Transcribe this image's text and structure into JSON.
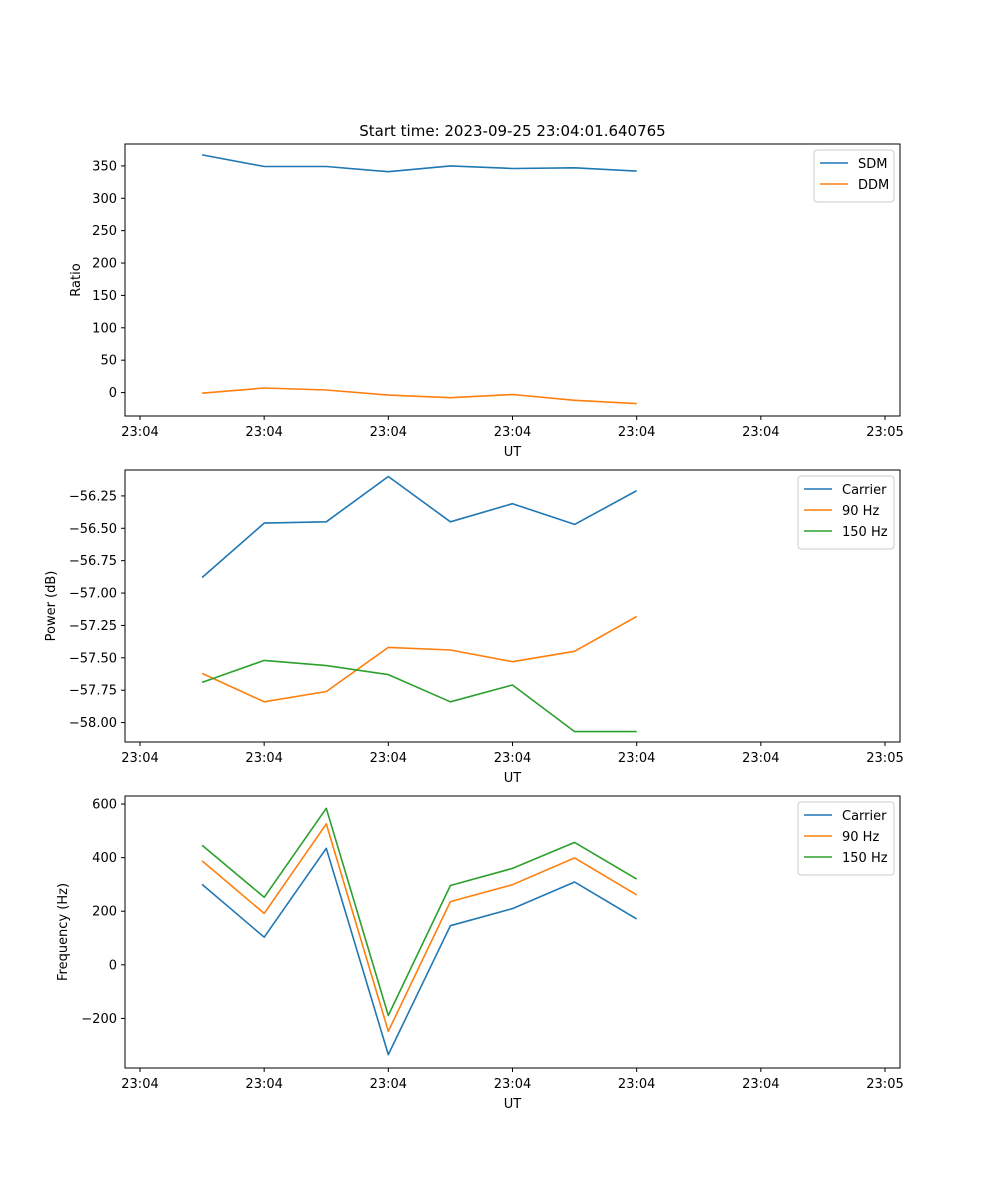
{
  "chart_data": [
    {
      "type": "line",
      "title": "Start time: 2023-09-25 23:04:01.640765",
      "xlabel": "UT",
      "ylabel": "Ratio",
      "xlim": [
        0,
        6
      ],
      "ylim": [
        -36.2,
        383.8
      ],
      "x": [
        0.5,
        1.0,
        1.5,
        2.0,
        2.5,
        3.0,
        3.5,
        4.0
      ],
      "xticks": [
        0,
        1,
        2,
        3,
        4,
        5,
        6
      ],
      "xtick_labels": [
        "23:04",
        "23:04",
        "23:04",
        "23:04",
        "23:04",
        "23:04",
        "23:05"
      ],
      "yticks": [
        0,
        50,
        100,
        150,
        200,
        250,
        300,
        350
      ],
      "ytick_labels": [
        "0",
        "50",
        "100",
        "150",
        "200",
        "250",
        "300",
        "350"
      ],
      "legend": "top-right",
      "series": [
        {
          "name": "SDM",
          "color": "#1f77b4",
          "values": [
            367,
            349,
            349,
            341,
            350,
            346,
            347,
            342
          ]
        },
        {
          "name": "DDM",
          "color": "#ff7f0e",
          "values": [
            -1,
            7,
            4,
            -4,
            -8,
            -3,
            -12,
            -17
          ]
        }
      ]
    },
    {
      "type": "line",
      "title": "",
      "xlabel": "UT",
      "ylabel": "Power (dB)",
      "xlim": [
        0,
        6
      ],
      "ylim": [
        -58.15,
        -56.05
      ],
      "x": [
        0.5,
        1.0,
        1.5,
        2.0,
        2.5,
        3.0,
        3.5,
        4.0
      ],
      "xticks": [
        0,
        1,
        2,
        3,
        4,
        5,
        6
      ],
      "xtick_labels": [
        "23:04",
        "23:04",
        "23:04",
        "23:04",
        "23:04",
        "23:04",
        "23:05"
      ],
      "yticks": [
        -58.0,
        -57.75,
        -57.5,
        -57.25,
        -57.0,
        -56.75,
        -56.5,
        -56.25
      ],
      "ytick_labels": [
        "−58.00",
        "−57.75",
        "−57.50",
        "−57.25",
        "−57.00",
        "−56.75",
        "−56.50",
        "−56.25"
      ],
      "legend": "top-right",
      "series": [
        {
          "name": "Carrier",
          "color": "#1f77b4",
          "values": [
            -56.88,
            -56.46,
            -56.45,
            -56.1,
            -56.45,
            -56.31,
            -56.47,
            -56.21
          ]
        },
        {
          "name": "90 Hz",
          "color": "#ff7f0e",
          "values": [
            -57.62,
            -57.84,
            -57.76,
            -57.42,
            -57.44,
            -57.53,
            -57.45,
            -57.18
          ]
        },
        {
          "name": "150 Hz",
          "color": "#2ca02c",
          "values": [
            -57.69,
            -57.52,
            -57.56,
            -57.63,
            -57.84,
            -57.71,
            -58.07,
            -58.07
          ]
        }
      ]
    },
    {
      "type": "line",
      "title": "",
      "xlabel": "UT",
      "ylabel": "Frequency (Hz)",
      "xlim": [
        0,
        6
      ],
      "ylim": [
        -385,
        630
      ],
      "x": [
        0.5,
        1.0,
        1.5,
        2.0,
        2.5,
        3.0,
        3.5,
        4.0
      ],
      "xticks": [
        0,
        1,
        2,
        3,
        4,
        5,
        6
      ],
      "xtick_labels": [
        "23:04",
        "23:04",
        "23:04",
        "23:04",
        "23:04",
        "23:04",
        "23:05"
      ],
      "yticks": [
        -200,
        0,
        200,
        400,
        600
      ],
      "ytick_labels": [
        "−200",
        "0",
        "200",
        "400",
        "600"
      ],
      "legend": "top-right",
      "series": [
        {
          "name": "Carrier",
          "color": "#1f77b4",
          "values": [
            300,
            103,
            435,
            -335,
            146,
            210,
            309,
            171
          ]
        },
        {
          "name": "90 Hz",
          "color": "#ff7f0e",
          "values": [
            388,
            192,
            526,
            -248,
            236,
            299,
            399,
            261
          ]
        },
        {
          "name": "150 Hz",
          "color": "#2ca02c",
          "values": [
            446,
            252,
            584,
            -189,
            296,
            360,
            457,
            320
          ]
        }
      ]
    }
  ]
}
